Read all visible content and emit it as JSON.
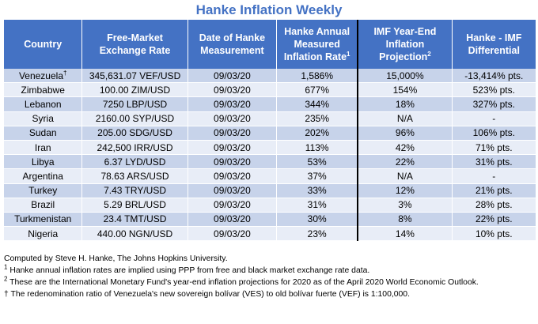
{
  "title": "Hanke Inflation Weekly",
  "table": {
    "headers": {
      "country": "Country",
      "rate": "Free-Market Exchange Rate",
      "date": "Date of Hanke Measurement",
      "hanke": "Hanke Annual Measured Inflation Rate",
      "hanke_sup": "1",
      "imf": "IMF Year-End Inflation Projection",
      "imf_sup": "2",
      "diff": "Hanke - IMF Differential"
    },
    "rows": [
      {
        "country": "Venezuela",
        "mark": "†",
        "rate": "345,631.07 VEF/USD",
        "date": "09/03/20",
        "hanke": "1,586%",
        "imf": "15,000%",
        "diff": "-13,414% pts."
      },
      {
        "country": "Zimbabwe",
        "mark": "",
        "rate": "100.00 ZIM/USD",
        "date": "09/03/20",
        "hanke": "677%",
        "imf": "154%",
        "diff": "523% pts."
      },
      {
        "country": "Lebanon",
        "mark": "",
        "rate": "7250 LBP/USD",
        "date": "09/03/20",
        "hanke": "344%",
        "imf": "18%",
        "diff": "327% pts."
      },
      {
        "country": "Syria",
        "mark": "",
        "rate": "2160.00 SYP/USD",
        "date": "09/03/20",
        "hanke": "235%",
        "imf": "N/A",
        "diff": "-"
      },
      {
        "country": "Sudan",
        "mark": "",
        "rate": "205.00 SDG/USD",
        "date": "09/03/20",
        "hanke": "202%",
        "imf": "96%",
        "diff": "106% pts."
      },
      {
        "country": "Iran",
        "mark": "",
        "rate": "242,500 IRR/USD",
        "date": "09/03/20",
        "hanke": "113%",
        "imf": "42%",
        "diff": "71% pts."
      },
      {
        "country": "Libya",
        "mark": "",
        "rate": "6.37 LYD/USD",
        "date": "09/03/20",
        "hanke": "53%",
        "imf": "22%",
        "diff": "31% pts."
      },
      {
        "country": "Argentina",
        "mark": "",
        "rate": "78.63 ARS/USD",
        "date": "09/03/20",
        "hanke": "37%",
        "imf": "N/A",
        "diff": "-"
      },
      {
        "country": "Turkey",
        "mark": "",
        "rate": "7.43 TRY/USD",
        "date": "09/03/20",
        "hanke": "33%",
        "imf": "12%",
        "diff": "21% pts."
      },
      {
        "country": "Brazil",
        "mark": "",
        "rate": "5.29 BRL/USD",
        "date": "09/03/20",
        "hanke": "31%",
        "imf": "3%",
        "diff": "28% pts."
      },
      {
        "country": "Turkmenistan",
        "mark": "",
        "rate": "23.4 TMT/USD",
        "date": "09/03/20",
        "hanke": "30%",
        "imf": "8%",
        "diff": "22% pts."
      },
      {
        "country": "Nigeria",
        "mark": "",
        "rate": "440.00 NGN/USD",
        "date": "09/03/20",
        "hanke": "23%",
        "imf": "14%",
        "diff": "10% pts."
      }
    ]
  },
  "notes": {
    "credit": "Computed by Steve H. Hanke, The Johns Hopkins University.",
    "n1_mark": "1",
    "n1": " Hanke annual inflation rates are implied using PPP from free and black market exchange rate data.",
    "n2_mark": "2",
    "n2": " These are the International Monetary Fund's year-end inflation projections for 2020 as of the April 2020 World Economic Outlook.",
    "n3_mark": "†",
    "n3": " The redenomination ratio of Venezuela's new sovereign bolívar (VES) to old bolívar fuerte (VEF) is 1:100,000."
  },
  "colors": {
    "title": "#4472c4",
    "header_bg": "#4472c4",
    "row_odd": "#c7d3ea",
    "row_even": "#e8edf7"
  }
}
